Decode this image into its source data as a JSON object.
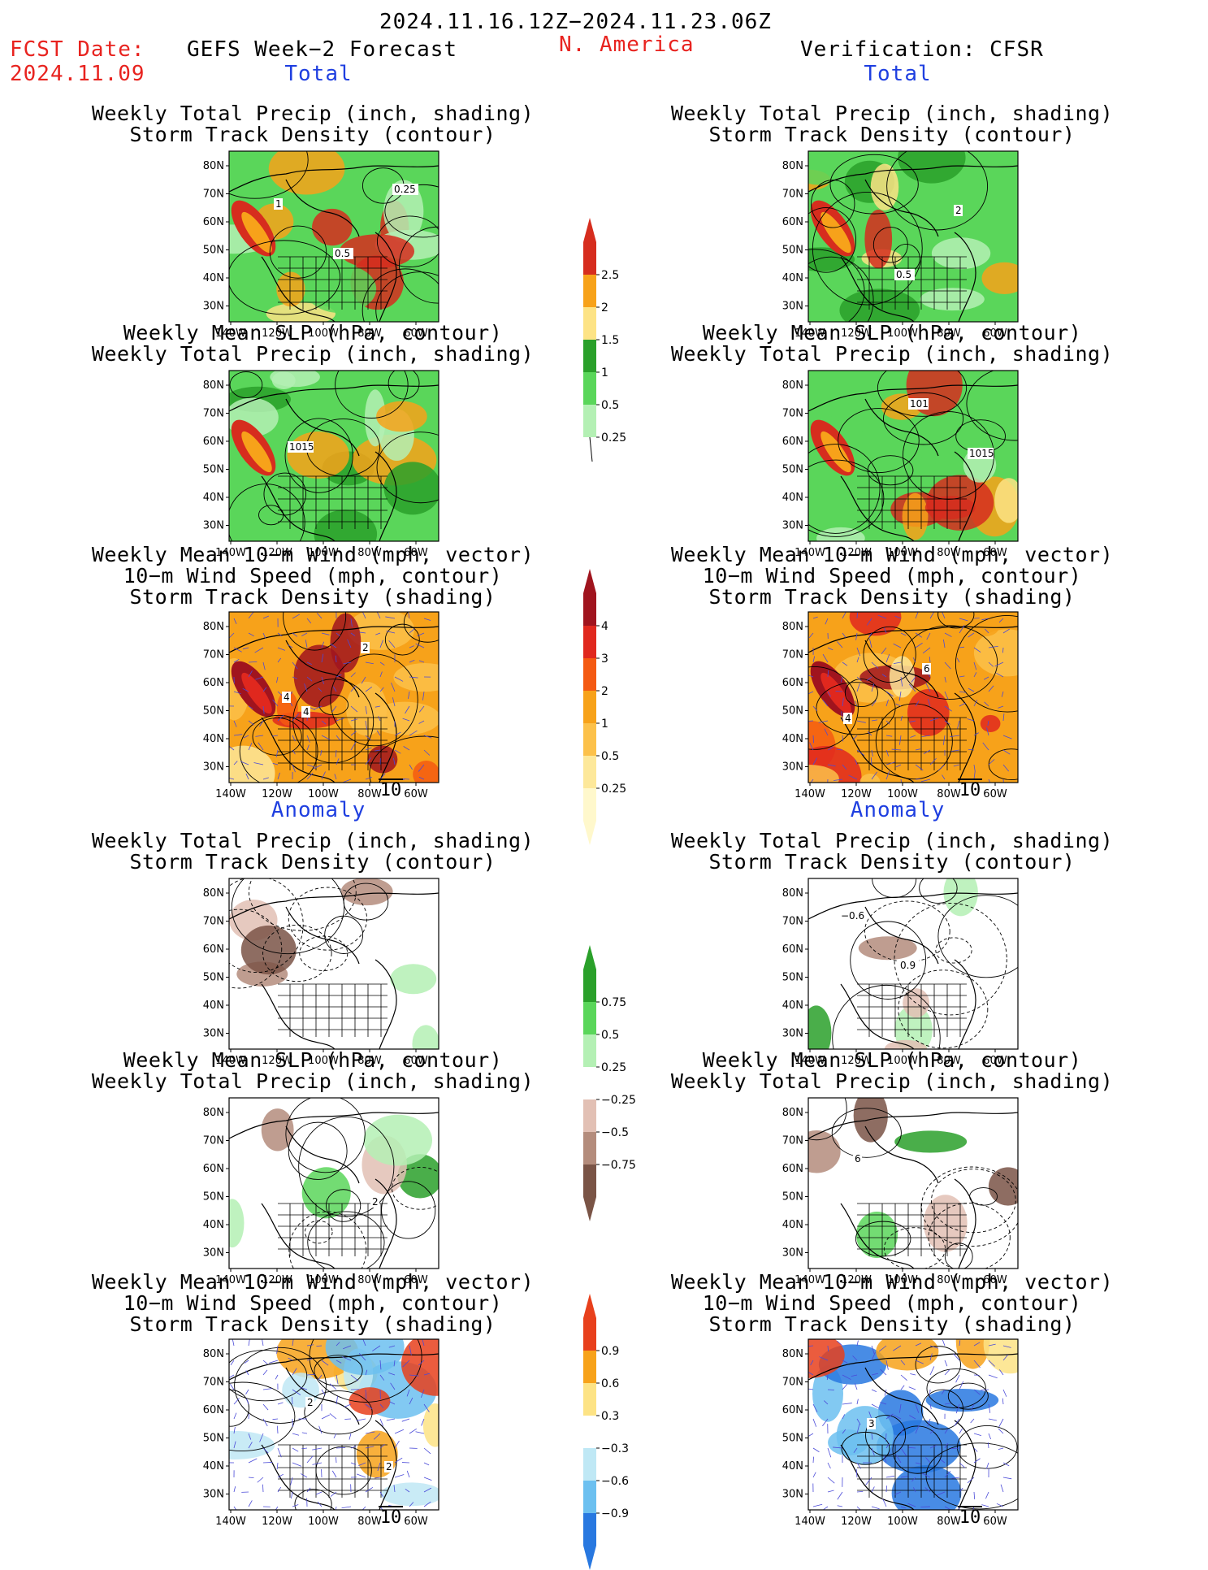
{
  "header": {
    "period": "2024.11.16.12Z−2024.11.23.06Z",
    "fcst_label": "FCST Date:",
    "fcst_date": "2024.11.09",
    "left_title": "GEFS Week−2 Forecast",
    "region": "N. America",
    "right_title": "Verification: CFSR"
  },
  "sections": {
    "total": "Total",
    "anomaly": "Anomaly"
  },
  "titles": {
    "precip_track": [
      "Weekly Total Precip (inch, shading)",
      "Storm Track Density (contour)"
    ],
    "slp_precip": [
      "Weekly Mean SLP (hPa, contour)",
      "Weekly Total Precip (inch, shading)"
    ],
    "wind_track": [
      "Weekly Mean 10−m Wind (mph, vector)",
      "10−m Wind Speed (mph, contour)",
      "Storm Track Density (shading)"
    ]
  },
  "axes": {
    "lat_ticks": [
      "80N",
      "70N",
      "60N",
      "50N",
      "40N",
      "30N"
    ],
    "lon_ticks": [
      "140W",
      "120W",
      "100W",
      "80W",
      "60W"
    ]
  },
  "vector_ref": "10",
  "map_labels": {
    "fcst_precip_total": [
      "1",
      "0.5",
      "0.25"
    ],
    "fcst_slp_total": [
      "1015"
    ],
    "fcst_wind_total": [
      "4",
      "2",
      "4"
    ],
    "obs_precip_total": [
      "0.5",
      "2"
    ],
    "obs_slp_total": [
      "101",
      "1015"
    ],
    "obs_wind_total": [
      "6",
      "4"
    ],
    "obs_precip_anom": [
      "−0.6",
      "0.9"
    ],
    "fcst_slp_anom": [
      "2"
    ],
    "obs_slp_anom": [
      "6"
    ],
    "fcst_wind_anom": [
      "2",
      "2"
    ],
    "obs_wind_anom": [
      "3"
    ]
  },
  "colorbars": {
    "precip_total": {
      "labels": [
        "2.5",
        "2",
        "1.5",
        "1",
        "0.5",
        "0.25"
      ],
      "colors": [
        "#d62d1e",
        "#f7a21a",
        "#fde385",
        "#2aa02a",
        "#5ad65a",
        "#b4f0b4"
      ]
    },
    "track_total": {
      "labels": [
        "4",
        "3",
        "2",
        "1",
        "0.5",
        "0.25"
      ],
      "colors": [
        "#a0141e",
        "#e0281e",
        "#f45a12",
        "#f7a21a",
        "#fcc14a",
        "#fde89a",
        "#fff8cc"
      ]
    },
    "precip_anom": {
      "labels": [
        "0.75",
        "0.5",
        "0.25",
        "−0.25",
        "−0.5",
        "−0.75"
      ],
      "colors": [
        "#2aa02a",
        "#5ad65a",
        "#b4f0b4",
        "#ffffff",
        "#e2c0b4",
        "#b48c7c",
        "#7a5446"
      ]
    },
    "track_anom": {
      "labels": [
        "0.9",
        "0.6",
        "0.3",
        "−0.3",
        "−0.6",
        "−0.9"
      ],
      "colors": [
        "#e8401c",
        "#f7a21a",
        "#fde385",
        "#ffffff",
        "#bfe8f5",
        "#6cc0f0",
        "#2878e0"
      ]
    }
  }
}
